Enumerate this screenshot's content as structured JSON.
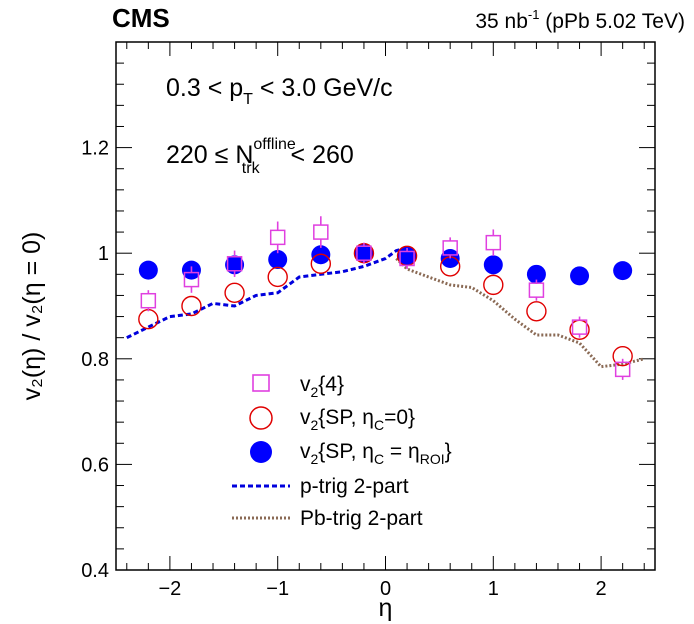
{
  "header": {
    "experiment": "CMS",
    "lumi_value": "35 nb",
    "lumi_exp": "-1",
    "lumi_rest": " (pPb 5.02 TeV)"
  },
  "annotations": {
    "pt_pre": "0.3 < p",
    "pt_sub": "T",
    "pt_post": " < 3.0 GeV/c",
    "ntrk_pre": "220 ≤ N",
    "ntrk_sup": "offline",
    "ntrk_sub": "trk",
    "ntrk_post": " < 260"
  },
  "axes": {
    "xlabel": "η",
    "ylabel": "v₂(η) / v₂(η = 0)"
  },
  "legend": {
    "v24": {
      "main": "v",
      "sub": "2",
      "rest": "{4}"
    },
    "sp0": {
      "main": "v",
      "sub": "2",
      "mid": "{SP, η",
      "sub2": "C",
      "rest": "=0}"
    },
    "sproi": {
      "main": "v",
      "sub": "2",
      "mid": "{SP, η",
      "sub2": "C",
      "mid2": " = η",
      "sub3": "ROI",
      "rest": "}"
    },
    "ptrig": "p-trig 2-part",
    "pbtrig": "Pb-trig 2-part"
  },
  "colors": {
    "v24": "#e040e0",
    "sp0": "#e00000",
    "sproi": "#0000ff",
    "ptrig": "#0000dd",
    "pbtrig": "#8a6a55"
  },
  "chart_data": {
    "type": "scatter",
    "xlabel": "η",
    "ylabel": "v₂(η) / v₂(η = 0)",
    "xlim": [
      -2.5,
      2.5
    ],
    "ylim": [
      0.4,
      1.4
    ],
    "x_ticks": [
      "−2",
      "−1",
      "0",
      "1",
      "2"
    ],
    "y_ticks": [
      "0.4",
      "0.6",
      "0.8",
      "1",
      "1.2"
    ],
    "series": [
      {
        "name": "v2{4}",
        "marker": "open-square",
        "x": [
          -2.2,
          -1.8,
          -1.4,
          -1.0,
          -0.6,
          -0.2,
          0.2,
          0.6,
          1.0,
          1.4,
          1.8,
          2.2
        ],
        "y": [
          0.91,
          0.95,
          0.98,
          1.03,
          1.04,
          1.0,
          0.99,
          1.01,
          1.02,
          0.93,
          0.86,
          0.78
        ],
        "err": [
          0.02,
          0.025,
          0.025,
          0.03,
          0.03,
          0.02,
          0.02,
          0.02,
          0.025,
          0.02,
          0.02,
          0.02
        ]
      },
      {
        "name": "v2{SP, ηC=0}",
        "marker": "open-circle",
        "x": [
          -2.2,
          -1.8,
          -1.4,
          -1.0,
          -0.6,
          -0.2,
          0.2,
          0.6,
          1.0,
          1.4,
          1.8,
          2.2
        ],
        "y": [
          0.875,
          0.9,
          0.925,
          0.955,
          0.98,
          1.0,
          0.995,
          0.975,
          0.94,
          0.89,
          0.855,
          0.805
        ]
      },
      {
        "name": "v2{SP, ηC = ηROI}",
        "marker": "filled-circle",
        "x": [
          -2.2,
          -1.8,
          -1.4,
          -1.0,
          -0.6,
          -0.2,
          0.2,
          0.6,
          1.0,
          1.4,
          1.8,
          2.2
        ],
        "y": [
          0.968,
          0.968,
          0.978,
          0.988,
          0.997,
          1.0,
          0.995,
          0.99,
          0.978,
          0.96,
          0.957,
          0.967
        ]
      },
      {
        "name": "p-trig 2-part",
        "style": "dashed-line",
        "x": [
          -2.4,
          -2.2,
          -2.0,
          -1.8,
          -1.6,
          -1.4,
          -1.2,
          -1.0,
          -0.8,
          -0.6,
          -0.4,
          -0.2,
          0.0,
          0.1,
          0.2
        ],
        "y": [
          0.84,
          0.86,
          0.88,
          0.885,
          0.905,
          0.9,
          0.92,
          0.925,
          0.955,
          0.96,
          0.965,
          0.975,
          0.99,
          1.005,
          1.01
        ]
      },
      {
        "name": "Pb-trig 2-part",
        "style": "dotted-line",
        "x": [
          0.1,
          0.2,
          0.4,
          0.6,
          0.8,
          1.0,
          1.2,
          1.4,
          1.6,
          1.8,
          2.0,
          2.2,
          2.4
        ],
        "y": [
          0.99,
          0.97,
          0.955,
          0.94,
          0.935,
          0.91,
          0.875,
          0.845,
          0.845,
          0.83,
          0.785,
          0.79,
          0.8
        ]
      }
    ]
  }
}
